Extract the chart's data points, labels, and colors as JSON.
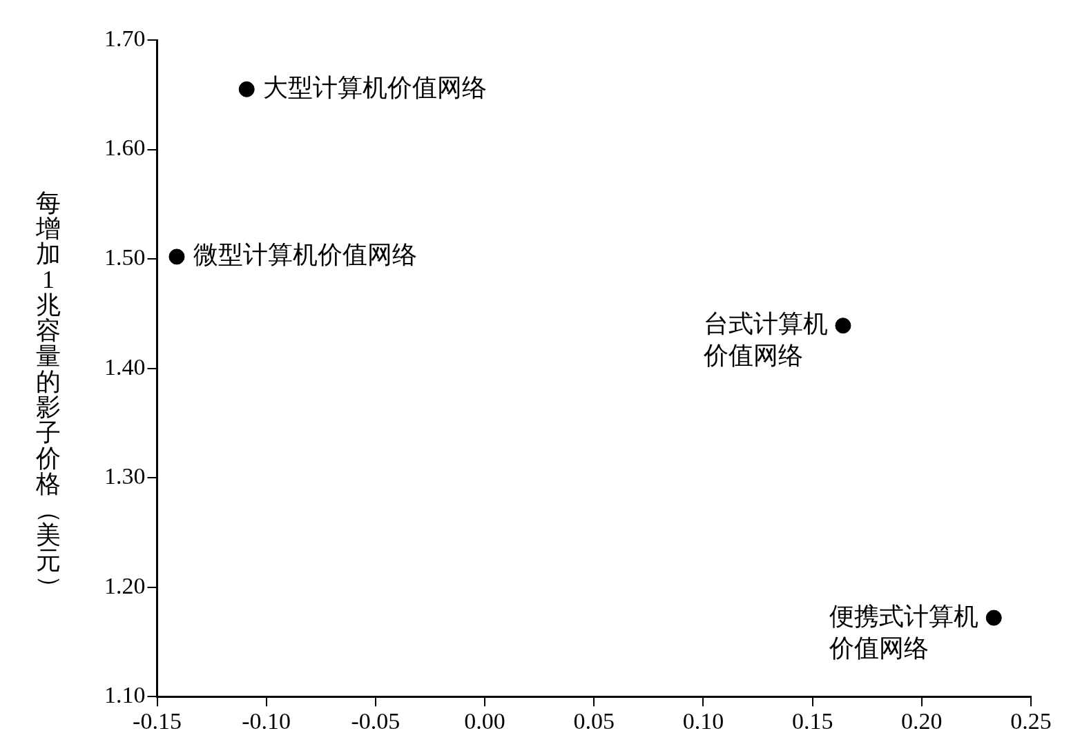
{
  "chart_data": {
    "type": "scatter",
    "ylabel": "每增加1兆容量的影子价格（美元）",
    "x": [
      -0.109,
      -0.141,
      0.164,
      0.233
    ],
    "series": [
      {
        "color": "#000000",
        "values": [
          1.655,
          1.502,
          1.439,
          1.172
        ]
      }
    ],
    "xlim": [
      -0.15,
      0.25
    ],
    "xticks": [
      {
        "value": -0.15,
        "label": "-0.15"
      },
      {
        "value": -0.1,
        "label": "-0.10"
      },
      {
        "value": -0.05,
        "label": "-0.05"
      },
      {
        "value": 0,
        "label": "0.00"
      },
      {
        "value": 0.05,
        "label": "0.05"
      },
      {
        "value": 0.1,
        "label": "0.10"
      },
      {
        "value": 0.15,
        "label": "0.15"
      },
      {
        "value": 0.2,
        "label": "0.20"
      },
      {
        "value": 0.25,
        "label": "0.25"
      }
    ],
    "ylim": [
      1.1,
      1.7
    ],
    "yticks": [
      {
        "value": 1.1,
        "label": "1.10"
      },
      {
        "value": 1.2,
        "label": "1.20"
      },
      {
        "value": 1.3,
        "label": "1.30"
      },
      {
        "value": 1.4,
        "label": "1.40"
      },
      {
        "value": 1.5,
        "label": "1.50"
      },
      {
        "value": 1.6,
        "label": "1.60"
      },
      {
        "value": 1.7,
        "label": "1.70"
      }
    ],
    "marker": "circle",
    "legend": false,
    "annotations": [
      {
        "text": "大型计算机价值网络",
        "x": -0.109,
        "y": 1.655
      },
      {
        "text": "微型计算机价值网络",
        "x": -0.141,
        "y": 1.502
      },
      {
        "text": "台式计算机价值网络",
        "x": 0.164,
        "y": 1.439
      },
      {
        "text": "便携式计算机价值网络",
        "x": 0.233,
        "y": 1.172
      }
    ]
  }
}
